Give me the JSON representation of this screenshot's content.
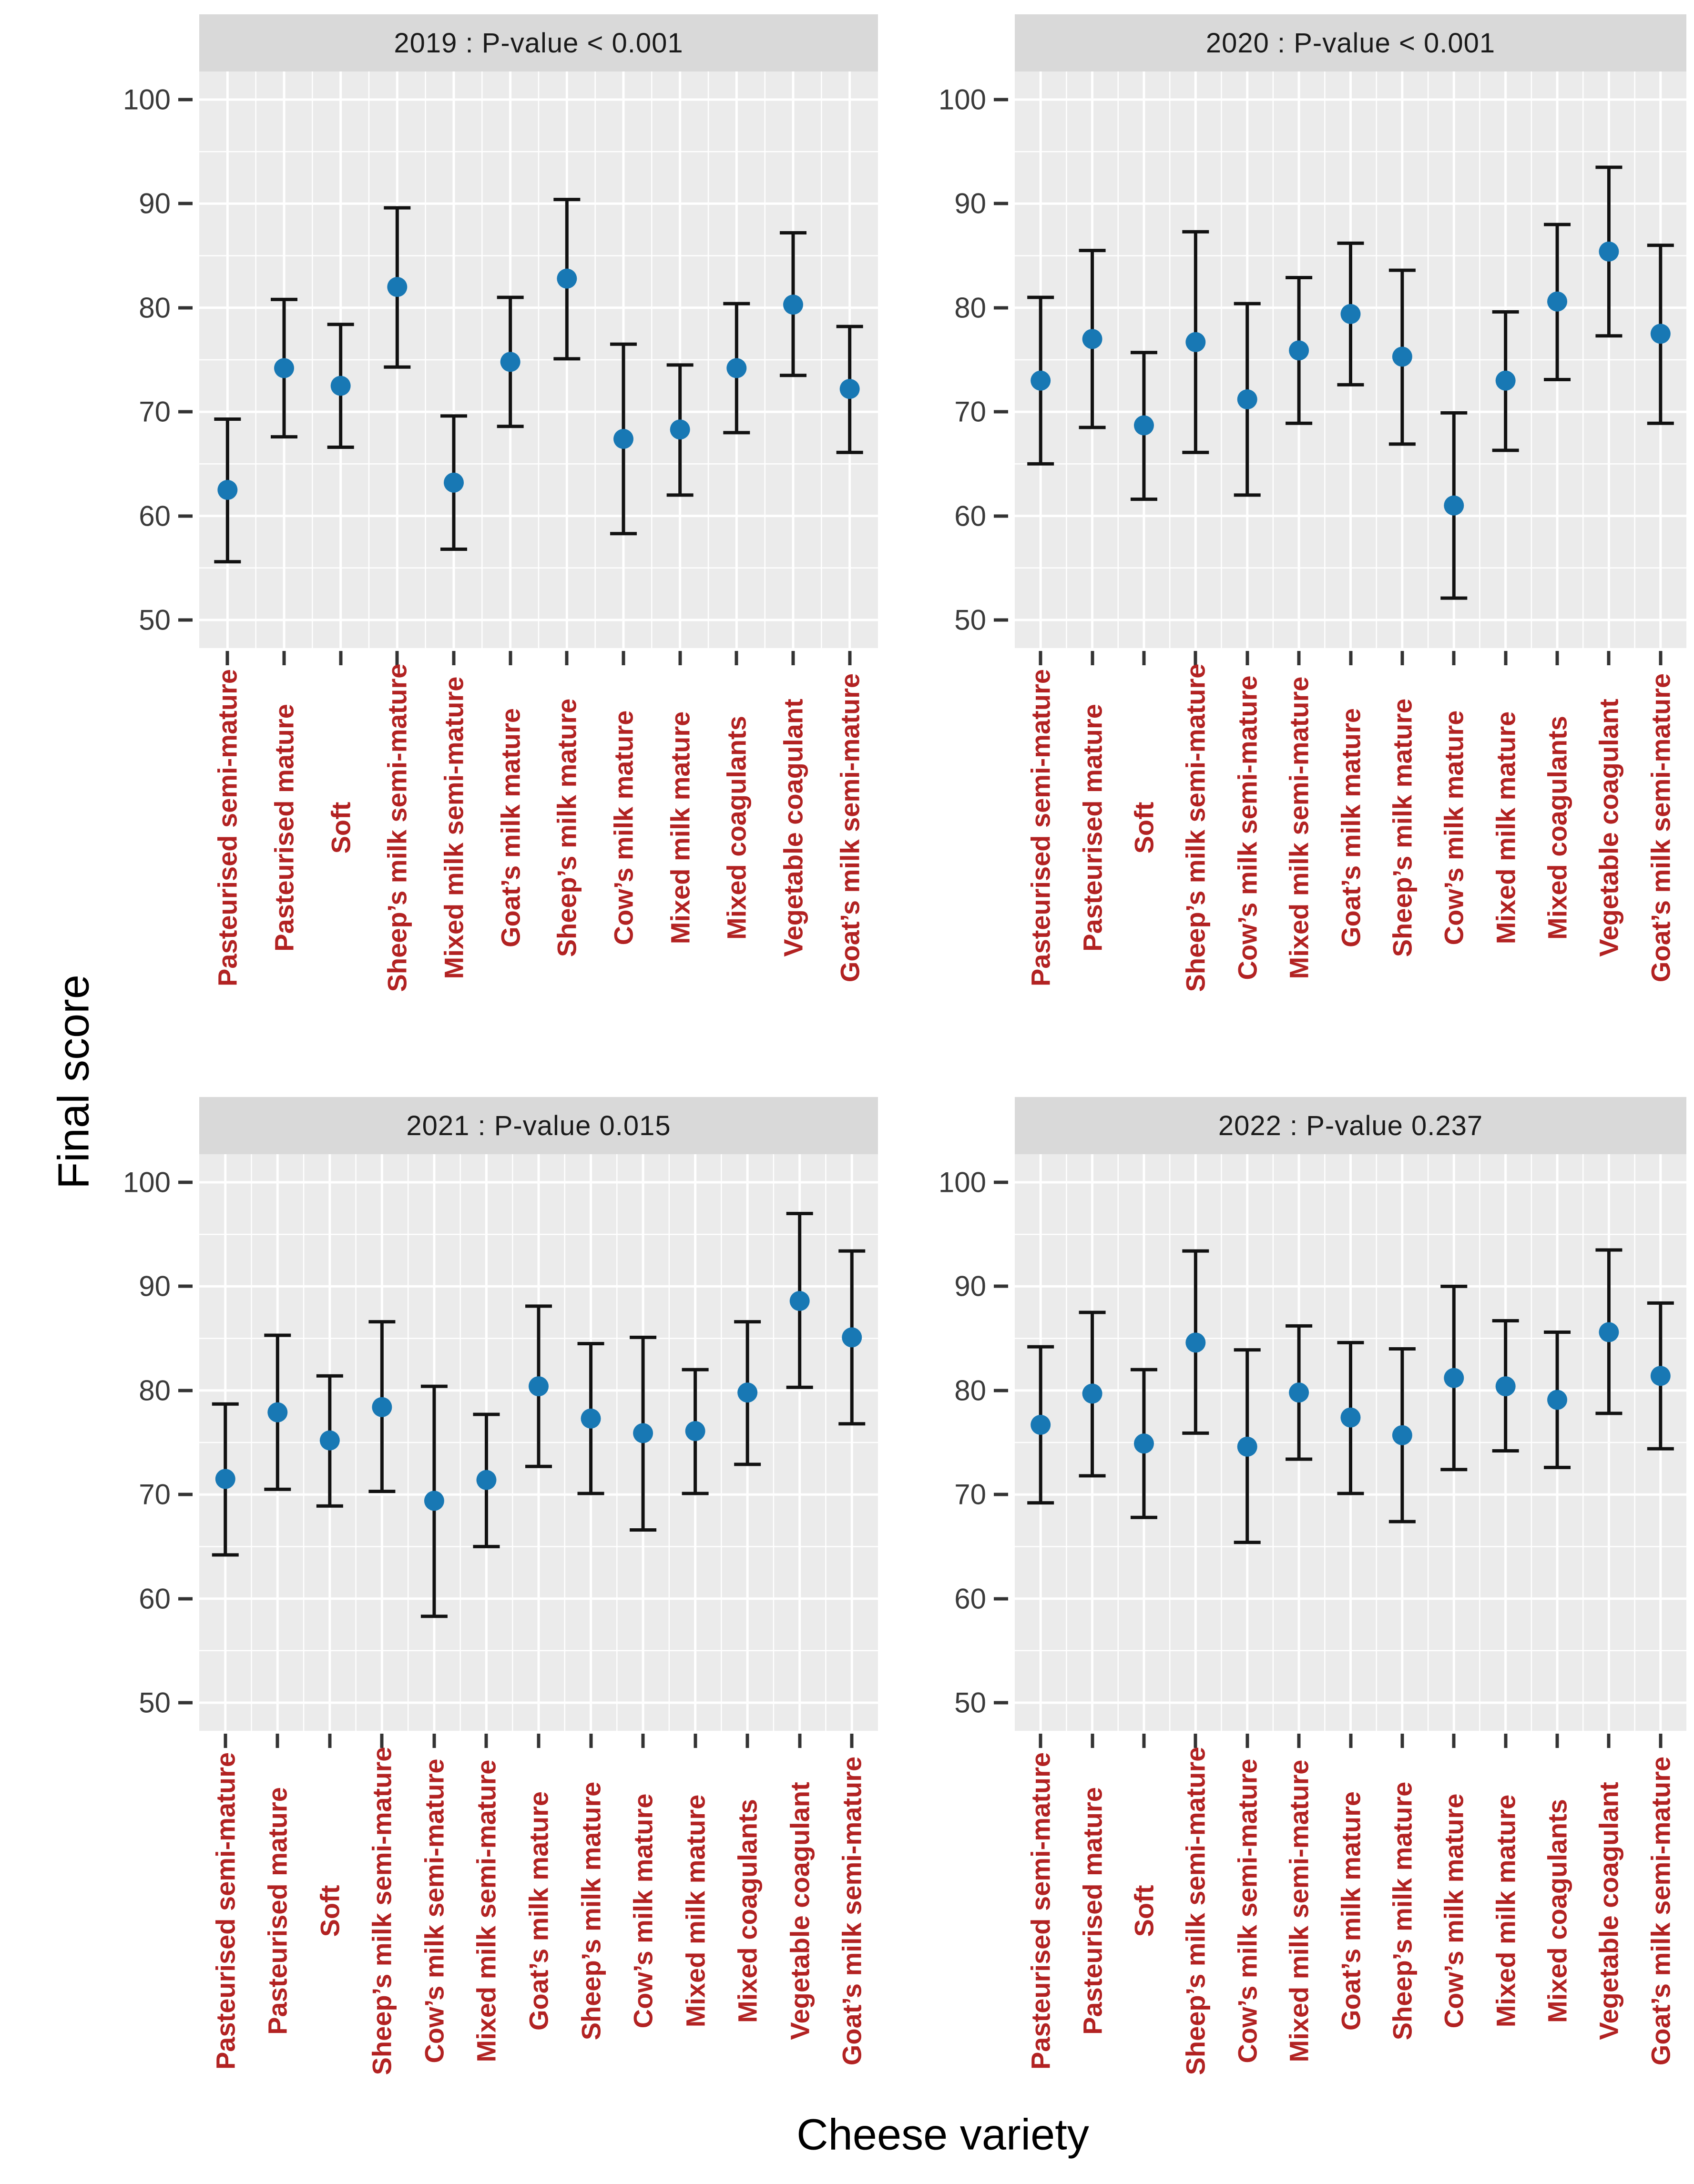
{
  "figure": {
    "y_axis_title": "Final score",
    "x_axis_title": "Cheese variety",
    "y_ticks": [
      100,
      90,
      80,
      70,
      60,
      50
    ],
    "colors": {
      "point": "#1878B4",
      "x_label": "#B22222",
      "panel_bg": "#EBEBEB",
      "strip_bg": "#D9D9D9",
      "gridline": "#FFFFFF",
      "errorbar": "#111111",
      "axis_text": "#3a3a3a"
    }
  },
  "chart_data": [
    {
      "type": "scatter",
      "subtype": "pointrange-errorbar",
      "title": "2019 : P-value  < 0.001",
      "ylim": [
        47.3,
        102.7
      ],
      "grid": true,
      "categories": [
        "Pasteurised semi-mature",
        "Pasteurised mature",
        "Soft",
        "Sheep’s milk semi-mature",
        "Mixed milk semi-mature",
        "Goat’s milk mature",
        "Sheep’s milk mature",
        "Cow’s milk mature",
        "Mixed milk mature",
        "Mixed coagulants",
        "Vegetable coagulant",
        "Goat’s milk semi-mature"
      ],
      "series": [
        {
          "name": "mean",
          "values": [
            62.5,
            74.2,
            72.5,
            82.0,
            63.2,
            74.8,
            82.8,
            67.4,
            68.3,
            74.2,
            80.3,
            72.2
          ]
        },
        {
          "name": "ci_low",
          "values": [
            55.6,
            67.6,
            66.6,
            74.3,
            56.8,
            68.6,
            75.1,
            58.3,
            62.0,
            68.0,
            73.5,
            66.1
          ]
        },
        {
          "name": "ci_high",
          "values": [
            69.3,
            80.8,
            78.4,
            89.6,
            69.6,
            81.0,
            90.4,
            76.5,
            74.5,
            80.4,
            87.2,
            78.2
          ]
        }
      ]
    },
    {
      "type": "scatter",
      "subtype": "pointrange-errorbar",
      "title": "2020 : P-value  < 0.001",
      "ylim": [
        47.3,
        102.7
      ],
      "grid": true,
      "categories": [
        "Pasteurised semi-mature",
        "Pasteurised mature",
        "Soft",
        "Sheep’s milk semi-mature",
        "Cow’s milk semi-mature",
        "Mixed milk semi-mature",
        "Goat’s milk mature",
        "Sheep’s milk mature",
        "Cow’s milk mature",
        "Mixed milk mature",
        "Mixed coagulants",
        "Vegetable coagulant",
        "Goat’s milk semi-mature"
      ],
      "series": [
        {
          "name": "mean",
          "values": [
            73.0,
            77.0,
            68.7,
            76.7,
            71.2,
            75.9,
            79.4,
            75.3,
            61.0,
            73.0,
            80.6,
            85.4,
            77.5
          ]
        },
        {
          "name": "ci_low",
          "values": [
            65.0,
            68.5,
            61.6,
            66.1,
            62.0,
            68.9,
            72.6,
            66.9,
            52.1,
            66.3,
            73.1,
            77.3,
            68.9
          ]
        },
        {
          "name": "ci_high",
          "values": [
            81.0,
            85.5,
            75.7,
            87.3,
            80.4,
            82.9,
            86.2,
            83.6,
            69.9,
            79.6,
            88.0,
            93.5,
            86.0
          ]
        }
      ]
    },
    {
      "type": "scatter",
      "subtype": "pointrange-errorbar",
      "title": "2021 : P-value  0.015",
      "ylim": [
        47.3,
        102.7
      ],
      "grid": true,
      "categories": [
        "Pasteurised semi-mature",
        "Pasteurised mature",
        "Soft",
        "Sheep’s milk semi-mature",
        "Cow’s milk semi-mature",
        "Mixed milk semi-mature",
        "Goat’s milk mature",
        "Sheep’s milk mature",
        "Cow’s milk mature",
        "Mixed milk mature",
        "Mixed coagulants",
        "Vegetable coagulant",
        "Goat’s milk semi-mature"
      ],
      "series": [
        {
          "name": "mean",
          "values": [
            71.5,
            77.9,
            75.2,
            78.4,
            69.4,
            71.4,
            80.4,
            77.3,
            75.9,
            76.1,
            79.8,
            88.6,
            85.1
          ]
        },
        {
          "name": "ci_low",
          "values": [
            64.2,
            70.5,
            68.9,
            70.3,
            58.3,
            65.0,
            72.7,
            70.1,
            66.6,
            70.1,
            72.9,
            80.3,
            76.8
          ]
        },
        {
          "name": "ci_high",
          "values": [
            78.7,
            85.3,
            81.4,
            86.6,
            80.4,
            77.7,
            88.1,
            84.5,
            85.1,
            82.0,
            86.6,
            97.0,
            93.4
          ]
        }
      ]
    },
    {
      "type": "scatter",
      "subtype": "pointrange-errorbar",
      "title": "2022 : P-value  0.237",
      "ylim": [
        47.3,
        102.7
      ],
      "grid": true,
      "categories": [
        "Pasteurised semi-mature",
        "Pasteurised mature",
        "Soft",
        "Sheep’s milk semi-mature",
        "Cow’s milk semi-mature",
        "Mixed milk semi-mature",
        "Goat’s milk mature",
        "Sheep’s milk mature",
        "Cow’s milk mature",
        "Mixed milk mature",
        "Mixed coagulants",
        "Vegetable coagulant",
        "Goat’s milk semi-mature"
      ],
      "series": [
        {
          "name": "mean",
          "values": [
            76.7,
            79.7,
            74.9,
            84.6,
            74.6,
            79.8,
            77.4,
            75.7,
            81.2,
            80.4,
            79.1,
            85.6,
            81.4
          ]
        },
        {
          "name": "ci_low",
          "values": [
            69.2,
            71.8,
            67.8,
            75.9,
            65.4,
            73.4,
            70.1,
            67.4,
            72.4,
            74.2,
            72.6,
            77.8,
            74.4
          ]
        },
        {
          "name": "ci_high",
          "values": [
            84.2,
            87.5,
            82.0,
            93.4,
            83.9,
            86.2,
            84.6,
            84.0,
            90.0,
            86.7,
            85.6,
            93.5,
            88.4
          ]
        }
      ]
    }
  ]
}
